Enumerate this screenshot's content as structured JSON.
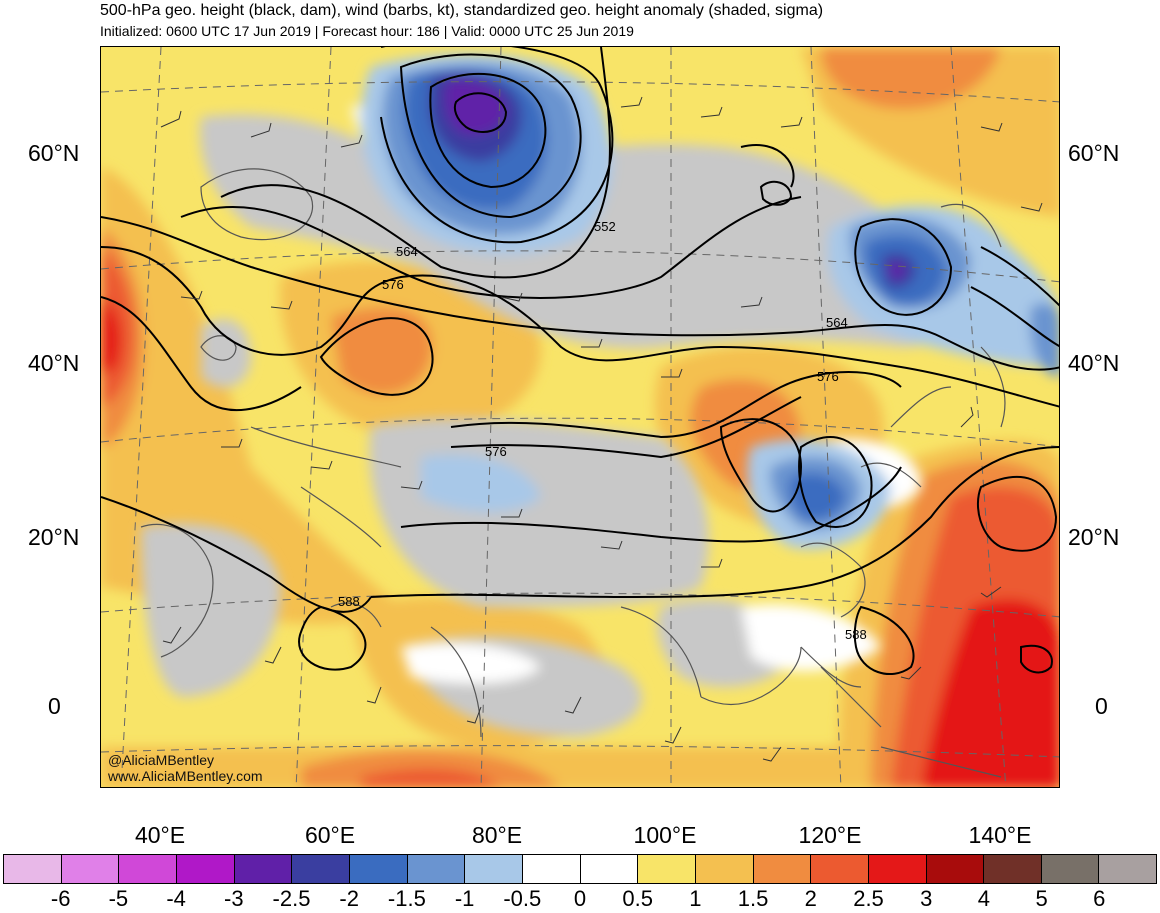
{
  "header": {
    "title": "500-hPa geo. height (black, dam), wind (barbs, kt), standardized geo. height anomaly (shaded, sigma)",
    "subtitle": "Initialized: 0600 UTC 17 Jun 2019 | Forecast hour: 186 | Valid: 0000 UTC 25 Jun 2019"
  },
  "map": {
    "lat_labels": [
      "60°N",
      "40°N",
      "20°N",
      "0"
    ],
    "lon_labels": [
      "40°E",
      "60°E",
      "80°E",
      "100°E",
      "120°E",
      "140°E"
    ],
    "contour_labels": [
      "552",
      "564",
      "576",
      "576",
      "564",
      "576",
      "588",
      "588"
    ]
  },
  "credit": {
    "handle": "@AliciaMBentley",
    "website": "www.AliciaMBentley.com"
  },
  "colorbar": {
    "ticks": [
      "-6",
      "-5",
      "-4",
      "-3",
      "-2.5",
      "-2",
      "-1.5",
      "-1",
      "-0.5",
      "0",
      "0.5",
      "1",
      "1.5",
      "2",
      "2.5",
      "3",
      "4",
      "5",
      "6"
    ],
    "colors": [
      "#e8b8e8",
      "#e080e8",
      "#d048d8",
      "#b018c8",
      "#6020a8",
      "#3a3ea0",
      "#3a6cc0",
      "#6a94d0",
      "#a8c8e8",
      "#ffffff",
      "#ffffff",
      "#f8e468",
      "#f4c050",
      "#f08c40",
      "#ec5a30",
      "#e41818",
      "#a80c0c",
      "#703028",
      "#787068",
      "#a8a0a0"
    ]
  }
}
